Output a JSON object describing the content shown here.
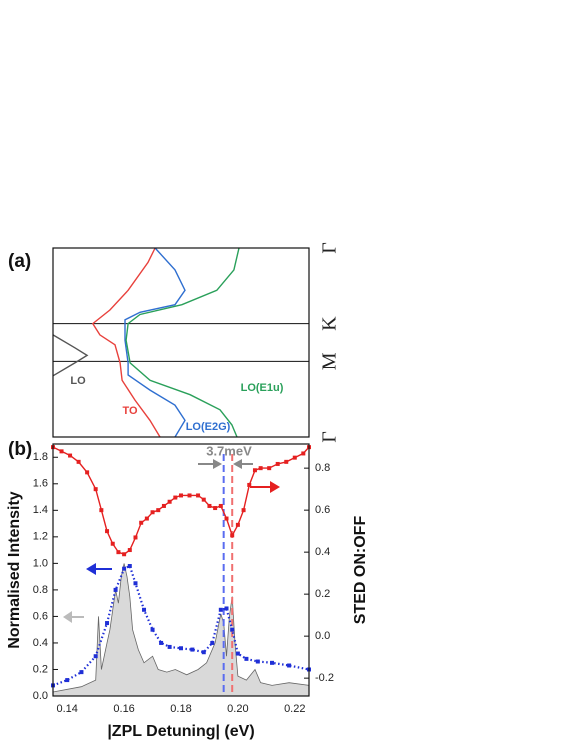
{
  "chart_data": [
    {
      "type": "line",
      "panel_label": "(a)",
      "xlim": [
        0.135,
        0.225
      ],
      "ylim": [
        0,
        2.5
      ],
      "y_inverted": true,
      "yticks": [
        {
          "value": 0,
          "label": "Γ"
        },
        {
          "value": 1,
          "label": "K"
        },
        {
          "value": 1.5,
          "label": "M"
        },
        {
          "value": 2.5,
          "label": "Γ"
        }
      ],
      "grid": true,
      "series": [
        {
          "name": "LO",
          "color": "#555555",
          "x": [
            0.135,
            0.1427,
            0.147,
            0.1427,
            0.135
          ],
          "values": [
            1.15,
            1.32,
            1.42,
            1.52,
            1.69
          ]
        },
        {
          "name": "TO",
          "color": "#e8413c",
          "x": [
            0.1709,
            0.1684,
            0.1614,
            0.155,
            0.149,
            0.1515,
            0.1568,
            0.1586,
            0.1593,
            0.1638,
            0.1691,
            0.1726
          ],
          "values": [
            0,
            0.19,
            0.56,
            0.82,
            1.0,
            1.15,
            1.28,
            1.52,
            1.75,
            2.01,
            2.28,
            2.5
          ]
        },
        {
          "name": "LO(E2G)",
          "color": "#2f6fd0",
          "x": [
            0.1709,
            0.1779,
            0.1814,
            0.1779,
            0.1656,
            0.1603,
            0.1603,
            0.1614,
            0.1614,
            0.1691,
            0.1779,
            0.1814,
            0.1779
          ],
          "values": [
            0,
            0.29,
            0.56,
            0.75,
            0.85,
            0.95,
            1.22,
            1.52,
            1.68,
            1.88,
            2.08,
            2.28,
            2.5
          ]
        },
        {
          "name": "LO(E1u)",
          "color": "#2aa05a",
          "x": [
            0.2004,
            0.1986,
            0.1926,
            0.1803,
            0.1656,
            0.1614,
            0.1607,
            0.1621,
            0.1691,
            0.1832,
            0.1937,
            0.1979,
            0.1997
          ],
          "values": [
            0,
            0.29,
            0.56,
            0.75,
            0.88,
            1.0,
            1.22,
            1.52,
            1.75,
            1.94,
            2.14,
            2.34,
            2.5
          ]
        }
      ]
    },
    {
      "type": "line",
      "panel_label": "(b)",
      "xlabel": "|ZPL Detuning| (eV)",
      "ylabel": "Normalised Intensity",
      "y2label": "STED ON:OFF",
      "xlim": [
        0.135,
        0.225
      ],
      "xticks": [
        0.14,
        0.16,
        0.18,
        {
          "value": 0.2,
          "label": "0.20"
        },
        0.22
      ],
      "ylim": [
        0,
        1.9
      ],
      "yticks": [
        {
          "value": 0,
          "label": "0.0"
        },
        0.2,
        0.4,
        0.6,
        0.8,
        {
          "value": 1,
          "label": "1.0"
        },
        1.2,
        1.4,
        1.6,
        1.8
      ],
      "y2lim": [
        -0.285,
        0.915
      ],
      "y2ticks": [
        -0.2,
        {
          "value": 0,
          "label": "0.0"
        },
        0.2,
        0.4,
        0.6,
        0.8
      ],
      "annotation": "3.7meV",
      "markers": [
        {
          "x": 0.195,
          "color": "#5a6cf0"
        },
        {
          "x": 0.198,
          "color": "#f07070"
        }
      ],
      "series": [
        {
          "color": "#666666",
          "fill": "#d9d9d9",
          "x": [
            0.135,
            0.145,
            0.15,
            0.151,
            0.152,
            0.154,
            0.155,
            0.157,
            0.158,
            0.159,
            0.16,
            0.161,
            0.162,
            0.163,
            0.165,
            0.167,
            0.17,
            0.172,
            0.175,
            0.178,
            0.182,
            0.186,
            0.189,
            0.192,
            0.194,
            0.195,
            0.196,
            0.197,
            0.198,
            0.199,
            0.2,
            0.203,
            0.206,
            0.208,
            0.212,
            0.218,
            0.225
          ],
          "values": [
            0.03,
            0.07,
            0.12,
            0.6,
            0.2,
            0.4,
            0.5,
            0.8,
            0.7,
            0.9,
            1.0,
            0.9,
            0.75,
            0.5,
            0.35,
            0.25,
            0.3,
            0.2,
            0.18,
            0.2,
            0.16,
            0.2,
            0.25,
            0.4,
            0.62,
            0.55,
            0.3,
            0.6,
            0.75,
            0.4,
            0.15,
            0.12,
            0.2,
            0.1,
            0.08,
            0.1,
            0.08
          ]
        },
        {
          "color": "#1f2fd6",
          "linestyle": "dotted",
          "marker": "square",
          "x": [
            0.135,
            0.14,
            0.145,
            0.15,
            0.154,
            0.157,
            0.16,
            0.162,
            0.164,
            0.167,
            0.17,
            0.173,
            0.176,
            0.18,
            0.184,
            0.188,
            0.191,
            0.194,
            0.196,
            0.198,
            0.2,
            0.203,
            0.207,
            0.212,
            0.218,
            0.225
          ],
          "values": [
            0.08,
            0.12,
            0.18,
            0.3,
            0.55,
            0.8,
            0.96,
            0.98,
            0.85,
            0.65,
            0.5,
            0.4,
            0.37,
            0.36,
            0.35,
            0.33,
            0.4,
            0.65,
            0.66,
            0.5,
            0.32,
            0.28,
            0.26,
            0.25,
            0.23,
            0.2
          ]
        },
        {
          "color": "#e52020",
          "marker": "square",
          "axis": "y2",
          "x": [
            0.135,
            0.138,
            0.141,
            0.144,
            0.147,
            0.15,
            0.152,
            0.154,
            0.156,
            0.158,
            0.16,
            0.162,
            0.164,
            0.166,
            0.168,
            0.17,
            0.172,
            0.174,
            0.176,
            0.178,
            0.18,
            0.183,
            0.186,
            0.188,
            0.19,
            0.192,
            0.194,
            0.196,
            0.198,
            0.2,
            0.202,
            0.204,
            0.206,
            0.208,
            0.211,
            0.214,
            0.217,
            0.22,
            0.223,
            0.225
          ],
          "values": [
            0.9,
            0.88,
            0.86,
            0.83,
            0.78,
            0.7,
            0.6,
            0.5,
            0.44,
            0.4,
            0.39,
            0.41,
            0.47,
            0.54,
            0.56,
            0.59,
            0.6,
            0.62,
            0.64,
            0.66,
            0.67,
            0.67,
            0.67,
            0.65,
            0.62,
            0.61,
            0.62,
            0.56,
            0.48,
            0.53,
            0.6,
            0.72,
            0.79,
            0.8,
            0.8,
            0.82,
            0.83,
            0.85,
            0.87,
            0.9
          ]
        }
      ]
    }
  ]
}
